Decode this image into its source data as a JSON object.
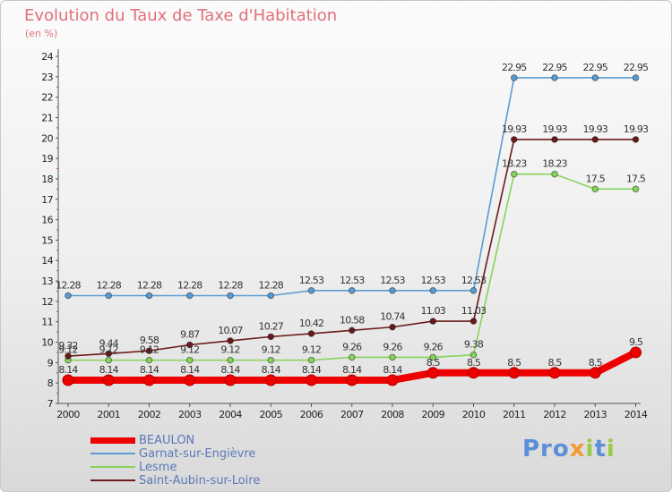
{
  "title": "Evolution du Taux de Taxe d'Habitation",
  "unit_label": "(en %)",
  "brand": {
    "p1": "Pro",
    "x": "x",
    "i1": "i",
    "t": "t",
    "i2": "i"
  },
  "chart_data": {
    "type": "line",
    "title": "Evolution du Taux de Taxe d'Habitation",
    "ylabel": "(en %)",
    "xlabel": "",
    "x": [
      "2000",
      "2001",
      "2002",
      "2003",
      "2004",
      "2005",
      "2006",
      "2007",
      "2008",
      "2009",
      "2010",
      "2011",
      "2012",
      "2013",
      "2014"
    ],
    "ylim": [
      7,
      24
    ],
    "yticks": [
      7,
      8,
      9,
      10,
      11,
      12,
      13,
      14,
      15,
      16,
      17,
      18,
      19,
      20,
      21,
      22,
      23,
      24
    ],
    "grid": false,
    "legend_position": "bottom-left",
    "series": [
      {
        "name": "BEAULON",
        "color": "#ee0000",
        "values": [
          8.14,
          8.14,
          8.14,
          8.14,
          8.14,
          8.14,
          8.14,
          8.14,
          8.14,
          8.5,
          8.5,
          8.5,
          8.5,
          8.5,
          9.5
        ],
        "labels": [
          "8.14",
          "8.14",
          "8.14",
          "8.14",
          "8.14",
          "8.14",
          "8.14",
          "8.14",
          "8.14",
          "8.5",
          "8.5",
          "8.5",
          "8.5",
          "8.5",
          "9.5"
        ]
      },
      {
        "name": "Garnat-sur-Engièvre",
        "color": "#5b9bd5",
        "values": [
          12.28,
          12.28,
          12.28,
          12.28,
          12.28,
          12.28,
          12.53,
          12.53,
          12.53,
          12.53,
          12.53,
          22.95,
          22.95,
          22.95,
          22.95
        ],
        "labels": [
          "12.28",
          "12.28",
          "12.28",
          "12.28",
          "12.28",
          "12.28",
          "12.53",
          "12.53",
          "12.53",
          "12.53",
          "12.53",
          "22.95",
          "22.95",
          "22.95",
          "22.95"
        ]
      },
      {
        "name": "Lesme",
        "color": "#86d45a",
        "values": [
          9.12,
          9.12,
          9.12,
          9.12,
          9.12,
          9.12,
          9.12,
          9.26,
          9.26,
          9.26,
          9.38,
          18.23,
          18.23,
          17.5,
          17.5
        ],
        "labels": [
          "9.12",
          "9.12",
          "9.12",
          "9.12",
          "9.12",
          "9.12",
          "9.12",
          "9.26",
          "9.26",
          "9.26",
          "9.38",
          "18.23",
          "18.23",
          "17.5",
          "17.5"
        ]
      },
      {
        "name": "Saint-Aubin-sur-Loire",
        "color": "#6b1a1a",
        "values": [
          9.32,
          9.44,
          9.58,
          9.87,
          10.07,
          10.27,
          10.42,
          10.58,
          10.74,
          11.03,
          11.03,
          19.93,
          19.93,
          19.93,
          19.93
        ],
        "labels": [
          "9.32",
          "9.44",
          "9.58",
          "9.87",
          "10.07",
          "10.27",
          "10.42",
          "10.58",
          "10.74",
          "11.03",
          "11.03",
          "19.93",
          "19.93",
          "19.93",
          "19.93"
        ]
      }
    ]
  },
  "legend": [
    {
      "name": "BEAULON",
      "color": "#ee0000",
      "width": 7
    },
    {
      "name": "Garnat-sur-Engièvre",
      "color": "#5b9bd5",
      "width": 2
    },
    {
      "name": "Lesme",
      "color": "#86d45a",
      "width": 2
    },
    {
      "name": "Saint-Aubin-sur-Loire",
      "color": "#6b1a1a",
      "width": 2
    }
  ]
}
